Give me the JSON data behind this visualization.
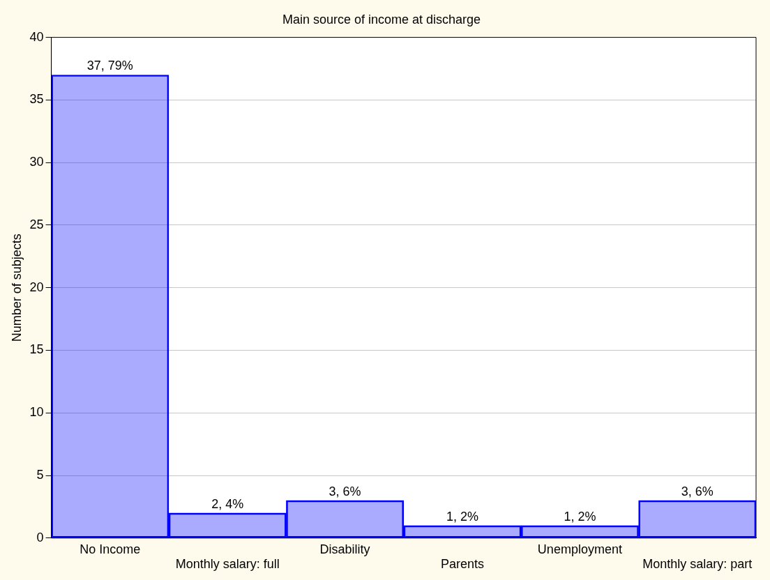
{
  "chart_data": {
    "type": "bar",
    "title": "Main source of income at discharge",
    "ylabel": "Number of subjects",
    "categories": [
      "No Income",
      "Monthly salary: full",
      "Disability",
      "Parents",
      "Unemployment",
      "Monthly salary: part"
    ],
    "values": [
      37,
      2,
      3,
      1,
      1,
      3
    ],
    "value_labels": [
      "37, 79%",
      "2, 4%",
      "3, 6%",
      "1, 2%",
      "1, 2%",
      "3, 6%"
    ],
    "color": "#0000ff",
    "ylim": [
      0,
      40
    ],
    "yticks": [
      0,
      5,
      10,
      15,
      20,
      25,
      30,
      35,
      40
    ],
    "grid": "y",
    "legend": false
  }
}
